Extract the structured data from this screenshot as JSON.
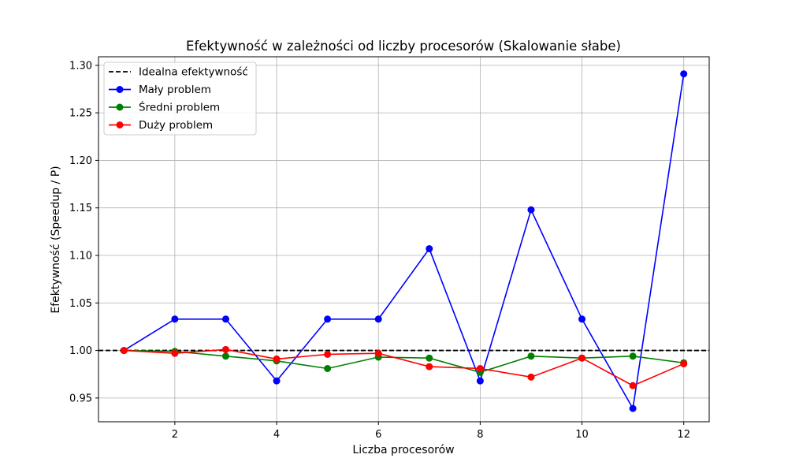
{
  "chart_data": {
    "type": "line",
    "title": "Efektywność w zależności od liczby procesorów (Skalowanie słabe)",
    "xlabel": "Liczba procesorów",
    "ylabel": "Efektywność (Speedup / P)",
    "xlim": [
      0.5,
      12.5
    ],
    "ylim": [
      0.925,
      1.309
    ],
    "xticks": [
      2,
      4,
      6,
      8,
      10,
      12
    ],
    "yticks": [
      0.95,
      1.0,
      1.05,
      1.1,
      1.15,
      1.2,
      1.25,
      1.3
    ],
    "grid": true,
    "legend_position": "top-left",
    "x": [
      1,
      2,
      3,
      4,
      5,
      6,
      7,
      8,
      9,
      10,
      11,
      12
    ],
    "reference_line": {
      "name": "Idealna efektywność",
      "y": 1.0,
      "color": "#000000",
      "style": "dashed"
    },
    "series": [
      {
        "name": "Mały problem",
        "color": "#0000ff",
        "values": [
          1.0,
          1.033,
          1.033,
          0.968,
          1.033,
          1.033,
          1.107,
          0.968,
          1.148,
          1.033,
          0.939,
          1.291
        ]
      },
      {
        "name": "Średni problem",
        "color": "#008000",
        "values": [
          1.0,
          0.999,
          0.994,
          0.989,
          0.981,
          0.993,
          0.992,
          0.977,
          0.994,
          0.992,
          0.994,
          0.987
        ]
      },
      {
        "name": "Duży problem",
        "color": "#ff0000",
        "values": [
          1.0,
          0.997,
          1.001,
          0.991,
          0.996,
          0.997,
          0.983,
          0.981,
          0.972,
          0.992,
          0.963,
          0.986
        ]
      }
    ]
  }
}
